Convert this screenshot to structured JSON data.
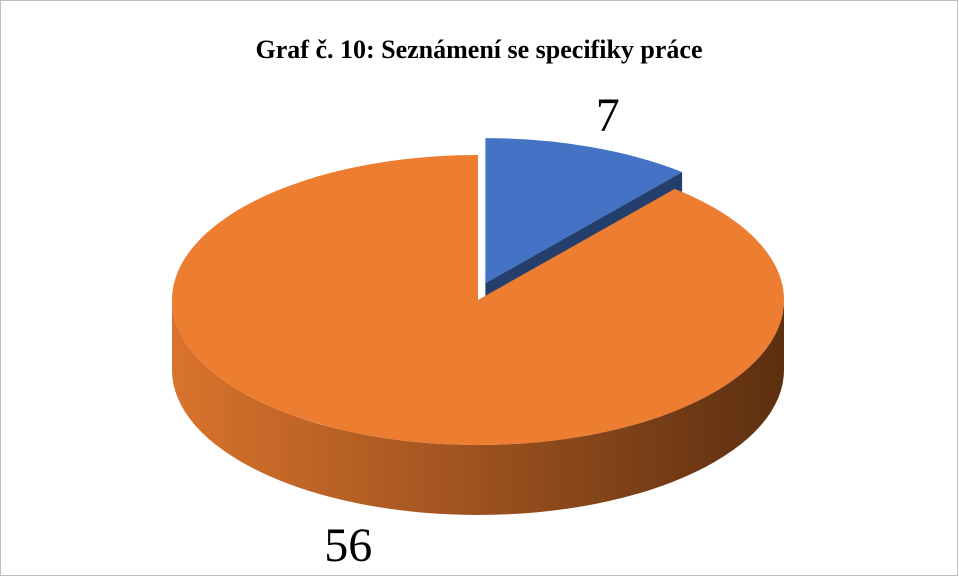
{
  "chart_data": {
    "type": "pie",
    "title": "Graf č. 10: Seznámení se specifiky práce",
    "values": [
      7,
      56
    ],
    "colors": [
      "#4472c4",
      "#ed7d31"
    ],
    "start_angle": 0,
    "exploded": [
      0
    ]
  }
}
